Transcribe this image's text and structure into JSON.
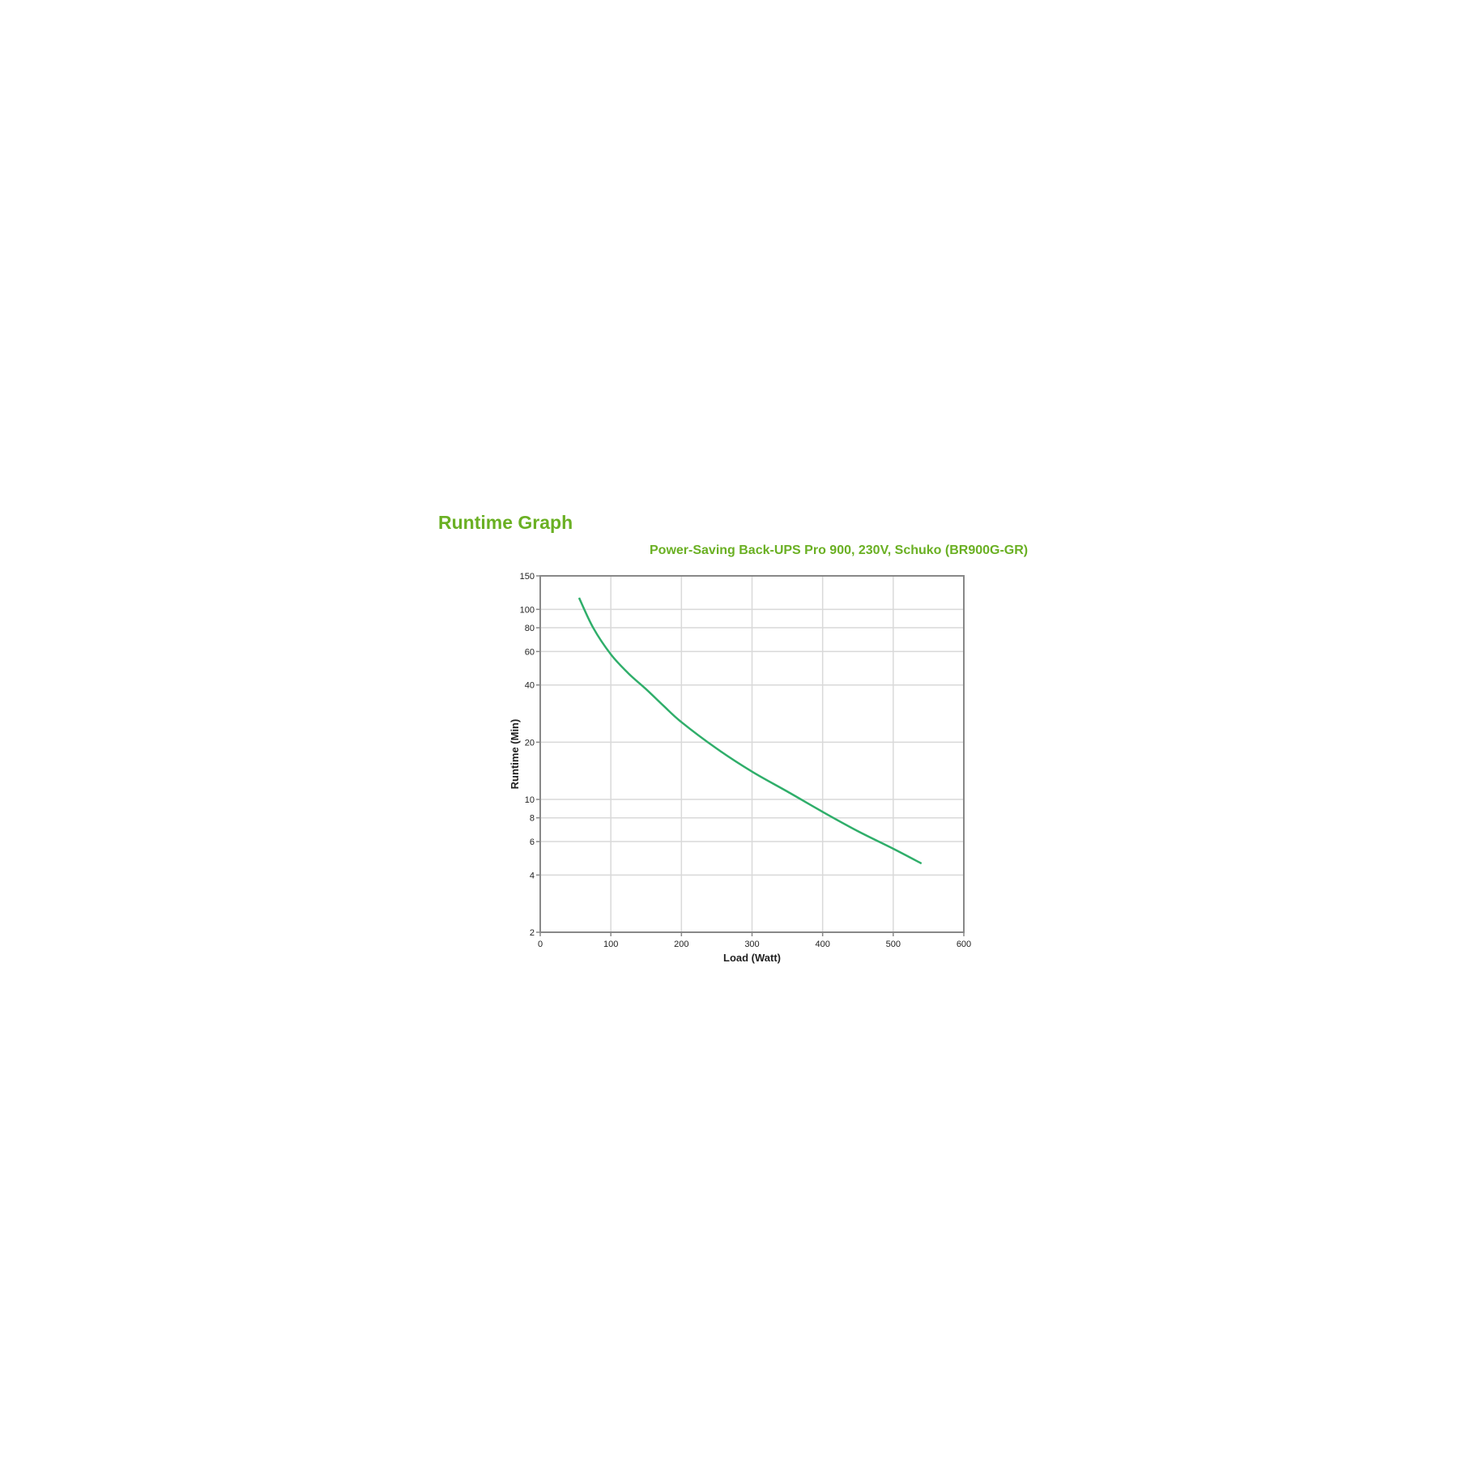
{
  "colors": {
    "title": "#6ab023",
    "series": "#2fae6a",
    "grid": "#d9d9d9",
    "axis": "#888888"
  },
  "heading": "Runtime Graph",
  "chart_data": {
    "type": "line",
    "title": "Power-Saving Back-UPS Pro 900, 230V, Schuko (BR900G-GR)",
    "xlabel": "Load (Watt)",
    "ylabel": "Runtime (Min)",
    "xlim": [
      0,
      600
    ],
    "ylim": [
      2,
      150
    ],
    "yscale": "log",
    "grid": true,
    "xticks": [
      0,
      100,
      200,
      300,
      400,
      500,
      600
    ],
    "yticks": [
      2,
      4,
      6,
      8,
      10,
      20,
      40,
      60,
      80,
      100,
      150
    ],
    "x": [
      55,
      75,
      100,
      125,
      150,
      175,
      200,
      250,
      300,
      350,
      400,
      450,
      500,
      540
    ],
    "y": [
      115,
      80,
      58,
      46,
      38,
      31,
      25.5,
      18.5,
      14,
      11,
      8.6,
      6.8,
      5.5,
      4.6
    ]
  }
}
